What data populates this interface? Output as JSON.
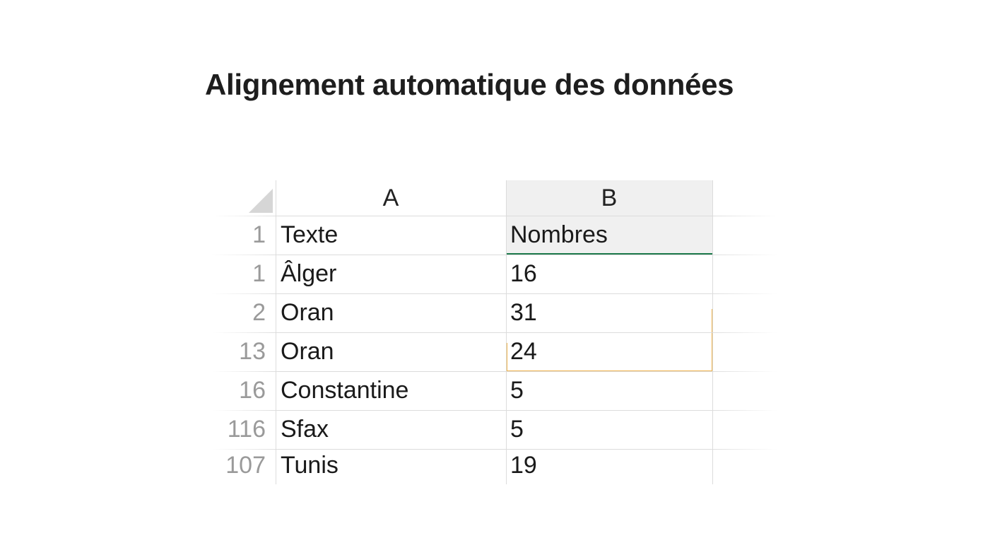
{
  "header": {
    "title": "Alignement automatique des données"
  },
  "table": {
    "columns": [
      "A",
      "B"
    ],
    "rows": [
      [
        1,
        "Texte",
        "Nombres"
      ],
      [
        1,
        "Âlger",
        16
      ],
      [
        2,
        "Oran",
        31
      ],
      [
        13,
        "Oran",
        24
      ],
      [
        16,
        "Constantine",
        5
      ],
      [
        116,
        "Sfax",
        5
      ],
      [
        107,
        "Tunis",
        19
      ]
    ]
  }
}
